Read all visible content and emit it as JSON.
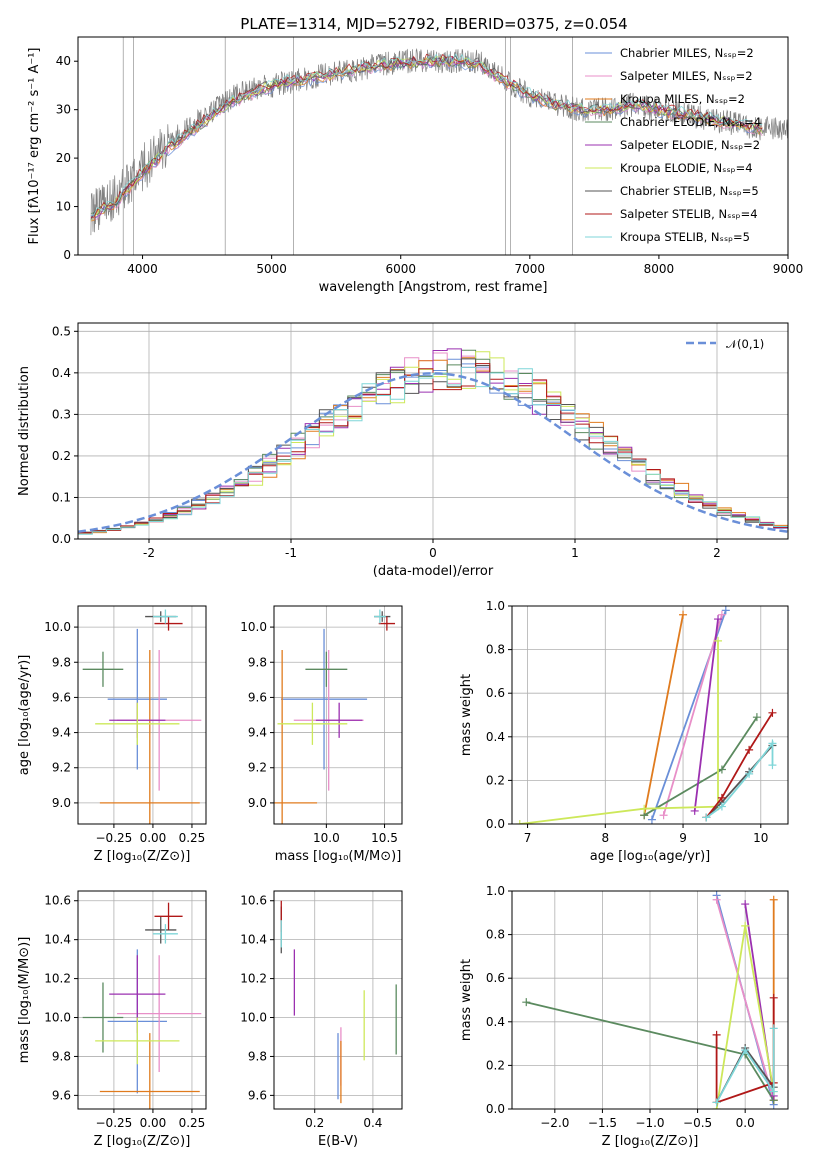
{
  "figure_title": "PLATE=1314, MJD=52792, FIBERID=0375, z=0.054",
  "chart_data": [
    {
      "id": "spectrum",
      "type": "line",
      "title": "PLATE=1314, MJD=52792, FIBERID=0375, z=0.054",
      "xlabel": "wavelength [Angstrom, rest frame]",
      "ylabel": "Flux [fλ10⁻¹⁷ erg cm⁻² s⁻¹ A⁻¹]",
      "xlim": [
        3500,
        9000
      ],
      "ylim": [
        0,
        45
      ],
      "xticks": [
        4000,
        5000,
        6000,
        7000,
        8000,
        9000
      ],
      "yticks": [
        0,
        10,
        20,
        30,
        40
      ],
      "grid": false,
      "legend_position": "top-right",
      "data_color": "#808080",
      "data_envelope": {
        "x": [
          3600,
          3800,
          4000,
          4200,
          4400,
          4600,
          4800,
          5000,
          5200,
          5400,
          5600,
          5800,
          6000,
          6200,
          6400,
          6600,
          6800
        ],
        "y": [
          9,
          12,
          18,
          23,
          27,
          31,
          34,
          35,
          36,
          37,
          38,
          39,
          40,
          40,
          40,
          40,
          37
        ]
      },
      "series": [
        {
          "name": "Chabrier MILES, Nₛₛₚ=2",
          "color": "#6a8fd8"
        },
        {
          "name": "Salpeter MILES, Nₛₛₚ=2",
          "color": "#e88fc8"
        },
        {
          "name": "Kroupa MILES, Nₛₛₚ=2",
          "color": "#e07b1e"
        },
        {
          "name": "Chabrier ELODIE, Nₛₛₚ=4",
          "color": "#5b8a5f"
        },
        {
          "name": "Salpeter ELODIE, Nₛₛₚ=2",
          "color": "#9b30b0"
        },
        {
          "name": "Kroupa ELODIE, Nₛₛₚ=4",
          "color": "#cde85a"
        },
        {
          "name": "Chabrier STELIB, Nₛₛₚ=5",
          "color": "#555555"
        },
        {
          "name": "Salpeter STELIB, Nₛₛₚ=4",
          "color": "#b01818"
        },
        {
          "name": "Kroupa STELIB, Nₛₛₚ=5",
          "color": "#7fd6d8"
        }
      ],
      "model_x": [
        3600,
        3800,
        4000,
        4200,
        4400,
        4600,
        4800,
        5000,
        5200,
        5400,
        5600,
        5800,
        6000,
        6200,
        6400,
        6600,
        6800,
        7000,
        7200,
        7400,
        7600,
        7800,
        8000,
        8200,
        8400,
        8600,
        8800
      ],
      "model_y": [
        8,
        11,
        17,
        22,
        26,
        30,
        33,
        35,
        36,
        37,
        38,
        39,
        39.5,
        40,
        40,
        39.5,
        36,
        33,
        31,
        30,
        30,
        31,
        30,
        29,
        28,
        27,
        26
      ]
    },
    {
      "id": "residuals",
      "type": "step",
      "xlabel": "(data-model)/error",
      "ylabel": "Normed distribution",
      "xlim": [
        -2.5,
        2.5
      ],
      "ylim": [
        0,
        0.52
      ],
      "xticks": [
        -2,
        -1,
        0,
        1,
        2
      ],
      "yticks": [
        0.0,
        0.1,
        0.2,
        0.3,
        0.4,
        0.5
      ],
      "grid": true,
      "legend_position": "top-right",
      "legend": "𝒩(0,1)",
      "normal_color": "#6a8fd8",
      "bin_width": 0.1
    },
    {
      "id": "age-vs-Z",
      "type": "errorbar",
      "xlabel": "Z [log₁₀(Z/Z⊙)]",
      "ylabel": "age  [log₁₀(age/yr)]",
      "xlim": [
        -0.48,
        0.34
      ],
      "ylim": [
        8.88,
        10.12
      ],
      "xticks": [
        -0.25,
        0.0,
        0.25
      ],
      "xticklabels": [
        "−0.25",
        "0.00",
        "0.25"
      ],
      "yticks": [
        9.0,
        9.2,
        9.4,
        9.6,
        9.8,
        10.0
      ],
      "grid": true,
      "points": [
        {
          "x": -0.1,
          "xerr": 0.19,
          "y": 9.59,
          "yerr": 0.4,
          "color": "#6a8fd8"
        },
        {
          "x": 0.04,
          "xerr": 0.27,
          "y": 9.47,
          "yerr": 0.4,
          "color": "#e88fc8"
        },
        {
          "x": -0.02,
          "xerr": 0.32,
          "y": 9.0,
          "yerr": 0.87,
          "color": "#e07b1e"
        },
        {
          "x": -0.32,
          "xerr": 0.13,
          "y": 9.76,
          "yerr": 0.1,
          "color": "#5b8a5f"
        },
        {
          "x": -0.1,
          "xerr": 0.18,
          "y": 9.47,
          "yerr": 0.1,
          "color": "#9b30b0"
        },
        {
          "x": -0.1,
          "xerr": 0.27,
          "y": 9.45,
          "yerr": 0.12,
          "color": "#cde85a"
        },
        {
          "x": 0.05,
          "xerr": 0.1,
          "y": 10.06,
          "yerr": 0.03,
          "color": "#555555"
        },
        {
          "x": 0.1,
          "xerr": 0.09,
          "y": 10.02,
          "yerr": 0.04,
          "color": "#b01818"
        },
        {
          "x": 0.08,
          "xerr": 0.08,
          "y": 10.06,
          "yerr": 0.04,
          "color": "#7fd6d8"
        }
      ]
    },
    {
      "id": "age-vs-mass",
      "type": "errorbar",
      "xlabel": "mass [log₁₀(M/M⊙)]",
      "ylabel": "",
      "xlim": [
        9.55,
        10.65
      ],
      "ylim": [
        8.88,
        10.12
      ],
      "xticks": [
        10.0,
        10.5
      ],
      "xticklabels": [
        "10.0",
        "10.5"
      ],
      "yticks": [
        9.0,
        9.2,
        9.4,
        9.6,
        9.8,
        10.0
      ],
      "grid": true,
      "points": [
        {
          "x": 9.98,
          "xerr": 0.37,
          "y": 9.59,
          "yerr": 0.4,
          "color": "#6a8fd8"
        },
        {
          "x": 10.02,
          "xerr": 0.3,
          "y": 9.47,
          "yerr": 0.4,
          "color": "#e88fc8"
        },
        {
          "x": 9.62,
          "xerr": 0.3,
          "y": 9.0,
          "yerr": 0.87,
          "color": "#e07b1e"
        },
        {
          "x": 10.0,
          "xerr": 0.18,
          "y": 9.76,
          "yerr": 0.1,
          "color": "#5b8a5f"
        },
        {
          "x": 10.11,
          "xerr": 0.2,
          "y": 9.47,
          "yerr": 0.1,
          "color": "#9b30b0"
        },
        {
          "x": 9.88,
          "xerr": 0.3,
          "y": 9.45,
          "yerr": 0.12,
          "color": "#cde85a"
        },
        {
          "x": 10.48,
          "xerr": 0.07,
          "y": 10.06,
          "yerr": 0.03,
          "color": "#555555"
        },
        {
          "x": 10.52,
          "xerr": 0.07,
          "y": 10.02,
          "yerr": 0.04,
          "color": "#b01818"
        },
        {
          "x": 10.46,
          "xerr": 0.05,
          "y": 10.06,
          "yerr": 0.04,
          "color": "#7fd6d8"
        }
      ]
    },
    {
      "id": "weight-vs-age",
      "type": "line",
      "xlabel": "age  [log₁₀(age/yr)]",
      "ylabel": "mass weight",
      "xlim": [
        6.8,
        10.35
      ],
      "ylim": [
        0,
        1.0
      ],
      "xticks": [
        7,
        8,
        9,
        10
      ],
      "yticks": [
        0.0,
        0.2,
        0.4,
        0.6,
        0.8,
        1.0
      ],
      "grid": true,
      "series": [
        {
          "color": "#6a8fd8",
          "x": [
            8.6,
            9.55
          ],
          "y": [
            0.02,
            0.98
          ]
        },
        {
          "color": "#e88fc8",
          "x": [
            8.75,
            9.5
          ],
          "y": [
            0.04,
            0.96
          ]
        },
        {
          "color": "#e07b1e",
          "x": [
            8.5,
            9.0
          ],
          "y": [
            0.04,
            0.96
          ]
        },
        {
          "color": "#5b8a5f",
          "x": [
            8.5,
            9.5,
            9.95
          ],
          "y": [
            0.04,
            0.25,
            0.49
          ]
        },
        {
          "color": "#9b30b0",
          "x": [
            9.15,
            9.45
          ],
          "y": [
            0.06,
            0.94
          ]
        },
        {
          "color": "#cde85a",
          "x": [
            6.9,
            8.5,
            9.45,
            9.45
          ],
          "y": [
            0.0,
            0.07,
            0.08,
            0.84
          ]
        },
        {
          "color": "#555555",
          "x": [
            9.3,
            9.5,
            9.85,
            10.15
          ],
          "y": [
            0.03,
            0.1,
            0.24,
            0.36
          ]
        },
        {
          "color": "#b01818",
          "x": [
            9.3,
            9.5,
            9.85,
            10.15
          ],
          "y": [
            0.03,
            0.12,
            0.34,
            0.51
          ]
        },
        {
          "color": "#7fd6d8",
          "x": [
            9.3,
            9.5,
            9.85,
            10.15,
            10.15
          ],
          "y": [
            0.03,
            0.08,
            0.23,
            0.37,
            0.27
          ]
        }
      ]
    },
    {
      "id": "mass-vs-Z",
      "type": "errorbar",
      "xlabel": "Z [log₁₀(Z/Z⊙)]",
      "ylabel": "mass [log₁₀(M/M⊙)]",
      "xlim": [
        -0.48,
        0.34
      ],
      "ylim": [
        9.53,
        10.65
      ],
      "xticks": [
        -0.25,
        0.0,
        0.25
      ],
      "xticklabels": [
        "−0.25",
        "0.00",
        "0.25"
      ],
      "yticks": [
        9.6,
        9.8,
        10.0,
        10.2,
        10.4,
        10.6
      ],
      "grid": true,
      "points": [
        {
          "x": -0.1,
          "xerr": 0.19,
          "y": 9.98,
          "yerr": 0.37,
          "color": "#6a8fd8"
        },
        {
          "x": 0.04,
          "xerr": 0.27,
          "y": 10.02,
          "yerr": 0.3,
          "color": "#e88fc8"
        },
        {
          "x": -0.02,
          "xerr": 0.32,
          "y": 9.62,
          "yerr": 0.3,
          "color": "#e07b1e"
        },
        {
          "x": -0.32,
          "xerr": 0.13,
          "y": 10.0,
          "yerr": 0.18,
          "color": "#5b8a5f"
        },
        {
          "x": -0.1,
          "xerr": 0.18,
          "y": 10.12,
          "yerr": 0.2,
          "color": "#9b30b0"
        },
        {
          "x": -0.1,
          "xerr": 0.27,
          "y": 9.88,
          "yerr": 0.12,
          "color": "#cde85a"
        },
        {
          "x": 0.05,
          "xerr": 0.1,
          "y": 10.45,
          "yerr": 0.07,
          "color": "#555555"
        },
        {
          "x": 0.1,
          "xerr": 0.09,
          "y": 10.52,
          "yerr": 0.07,
          "color": "#b01818"
        },
        {
          "x": 0.08,
          "xerr": 0.08,
          "y": 10.43,
          "yerr": 0.05,
          "color": "#7fd6d8"
        }
      ]
    },
    {
      "id": "mass-vs-ebv",
      "type": "errorbar",
      "xlabel": "E(B-V)",
      "ylabel": "",
      "xlim": [
        0.06,
        0.5
      ],
      "ylim": [
        9.53,
        10.65
      ],
      "xticks": [
        0.2,
        0.4
      ],
      "xticklabels": [
        "0.2",
        "0.4"
      ],
      "yticks": [
        9.6,
        9.8,
        10.0,
        10.2,
        10.4,
        10.6
      ],
      "grid": true,
      "points": [
        {
          "x": 0.28,
          "y": 9.75,
          "yerr": 0.17,
          "color": "#6a8fd8"
        },
        {
          "x": 0.29,
          "y": 9.8,
          "yerr": 0.15,
          "color": "#e88fc8"
        },
        {
          "x": 0.29,
          "y": 9.72,
          "yerr": 0.16,
          "color": "#e07b1e"
        },
        {
          "x": 0.48,
          "y": 9.99,
          "yerr": 0.18,
          "color": "#5b8a5f"
        },
        {
          "x": 0.13,
          "y": 10.18,
          "yerr": 0.17,
          "color": "#9b30b0"
        },
        {
          "x": 0.37,
          "y": 9.96,
          "yerr": 0.18,
          "color": "#cde85a"
        },
        {
          "x": 0.085,
          "y": 10.45,
          "yerr": 0.12,
          "color": "#555555"
        },
        {
          "x": 0.085,
          "y": 10.52,
          "yerr": 0.08,
          "color": "#b01818"
        },
        {
          "x": 0.085,
          "y": 10.43,
          "yerr": 0.07,
          "color": "#7fd6d8"
        }
      ]
    },
    {
      "id": "weight-vs-Z",
      "type": "line",
      "xlabel": "Z [log₁₀(Z/Z⊙)]",
      "ylabel": "mass weight",
      "xlim": [
        -2.45,
        0.45
      ],
      "ylim": [
        0,
        1.0
      ],
      "xticks": [
        -2.0,
        -1.5,
        -1.0,
        -0.5,
        0.0
      ],
      "xticklabels": [
        "−2.0",
        "−1.5",
        "−1.0",
        "−0.5",
        "0.0"
      ],
      "yticks": [
        0.0,
        0.2,
        0.4,
        0.6,
        0.8,
        1.0
      ],
      "grid": true,
      "series": [
        {
          "color": "#6a8fd8",
          "x": [
            -0.3,
            0.3
          ],
          "y": [
            0.98,
            0.02
          ]
        },
        {
          "color": "#e88fc8",
          "x": [
            -0.3,
            0.3
          ],
          "y": [
            0.96,
            0.04
          ]
        },
        {
          "color": "#e07b1e",
          "x": [
            0.3,
            0.3
          ],
          "y": [
            0.04,
            0.96
          ]
        },
        {
          "color": "#5b8a5f",
          "x": [
            -2.3,
            0.0,
            0.3
          ],
          "y": [
            0.49,
            0.25,
            0.04
          ]
        },
        {
          "color": "#9b30b0",
          "x": [
            0.0,
            0.3
          ],
          "y": [
            0.94,
            0.06
          ]
        },
        {
          "color": "#cde85a",
          "x": [
            -0.3,
            0.0,
            0.3
          ],
          "y": [
            0.0,
            0.84,
            0.08
          ]
        },
        {
          "color": "#555555",
          "x": [
            -0.3,
            0.0,
            0.3
          ],
          "y": [
            0.03,
            0.28,
            0.1
          ]
        },
        {
          "color": "#b01818",
          "x": [
            -0.3,
            -0.3,
            0.3,
            0.3
          ],
          "y": [
            0.34,
            0.03,
            0.12,
            0.51
          ]
        },
        {
          "color": "#7fd6d8",
          "x": [
            -0.3,
            0.0,
            0.3,
            0.3
          ],
          "y": [
            0.03,
            0.27,
            0.08,
            0.37
          ]
        }
      ]
    }
  ]
}
